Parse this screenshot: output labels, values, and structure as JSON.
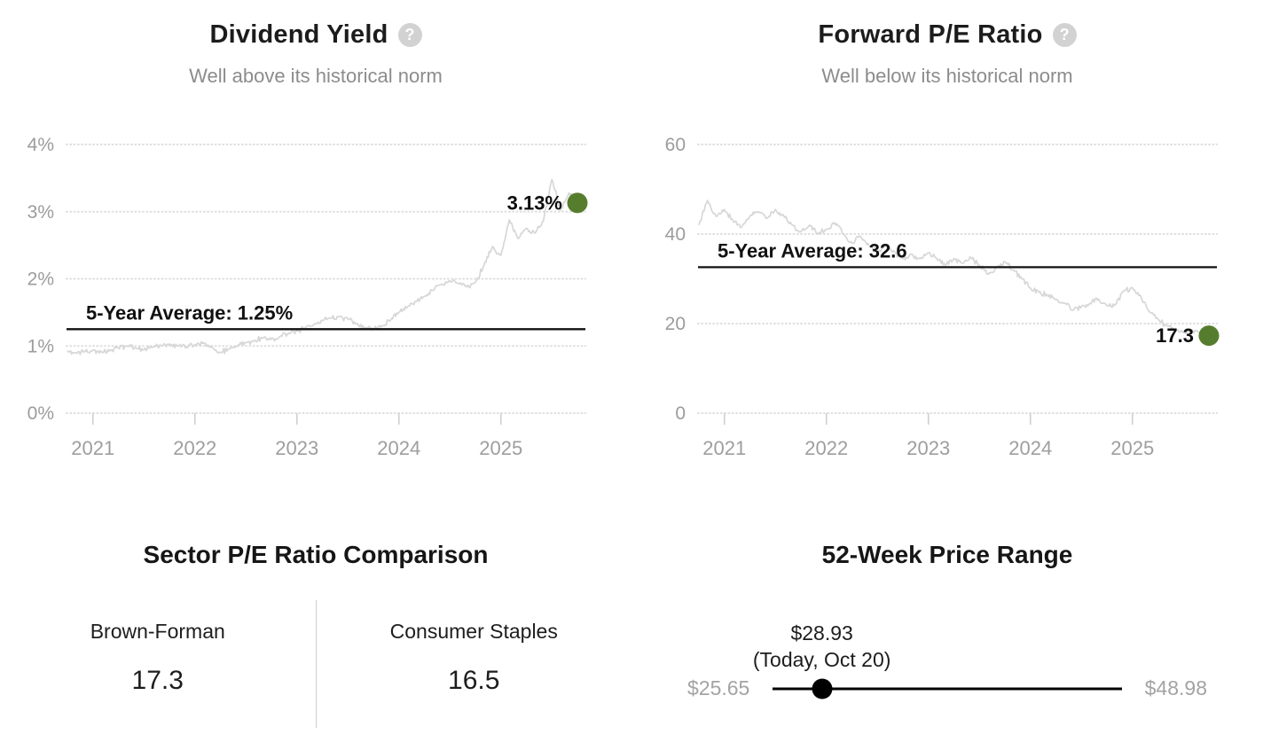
{
  "colors": {
    "accent_green": "#567d2d",
    "series_line": "#d7d7d7",
    "average_line": "#111111",
    "gridline": "#dedede",
    "axis_text": "#9c9c9c",
    "title_text": "#1c1c1c",
    "subtitle_text": "#8c8c8c",
    "range_label_gray": "#a3a3a3",
    "help_icon_bg": "#d2d2d2"
  },
  "chart_data": [
    {
      "type": "line",
      "title": "Dividend Yield",
      "subtitle": "Well above its historical norm",
      "help_icon": "question-mark-icon",
      "x_ticks": [
        "2021",
        "2022",
        "2023",
        "2024",
        "2025"
      ],
      "y_tick_labels": [
        "4%",
        "3%",
        "2%",
        "1%",
        "0%"
      ],
      "y_tick_values": [
        4,
        3,
        2,
        1,
        0
      ],
      "ylim": [
        0,
        4
      ],
      "grid": "dotted-horizontal",
      "legend": "none",
      "average_line": {
        "label": "5-Year Average: 1.25%",
        "value": 1.25
      },
      "end_point": {
        "label": "3.13%",
        "value": 3.13
      },
      "series": [
        {
          "name": "Dividend Yield (monthly, Oct 2020 - Oct 2025)",
          "values": [
            0.93,
            0.9,
            0.92,
            0.94,
            0.91,
            0.94,
            0.97,
            1.0,
            0.97,
            0.95,
            0.98,
            1.01,
            1.03,
            1.0,
            0.98,
            1.02,
            1.05,
            0.98,
            0.9,
            0.96,
            1.0,
            1.05,
            1.08,
            1.12,
            1.1,
            1.14,
            1.18,
            1.22,
            1.27,
            1.32,
            1.38,
            1.42,
            1.44,
            1.4,
            1.33,
            1.27,
            1.25,
            1.3,
            1.38,
            1.5,
            1.58,
            1.66,
            1.74,
            1.83,
            1.92,
            1.97,
            1.93,
            1.88,
            1.95,
            2.2,
            2.48,
            2.35,
            2.88,
            2.6,
            2.75,
            2.68,
            2.86,
            3.48,
            3.02,
            3.28,
            3.13
          ]
        }
      ],
      "line_color": "#d7d7d7",
      "dot_color": "#567d2d"
    },
    {
      "type": "line",
      "title": "Forward P/E Ratio",
      "subtitle": "Well below its historical norm",
      "help_icon": "question-mark-icon",
      "x_ticks": [
        "2021",
        "2022",
        "2023",
        "2024",
        "2025"
      ],
      "y_tick_labels": [
        "60",
        "40",
        "20",
        "0"
      ],
      "y_tick_values": [
        60,
        40,
        20,
        0
      ],
      "ylim": [
        0,
        60
      ],
      "grid": "dotted-horizontal",
      "legend": "none",
      "average_line": {
        "label": "5-Year Average: 32.6",
        "value": 32.6
      },
      "end_point": {
        "label": "17.3",
        "value": 17.3
      },
      "series": [
        {
          "name": "Forward P/E Ratio (monthly, Oct 2020 - Oct 2025)",
          "values": [
            42.0,
            47.5,
            44.0,
            45.5,
            43.0,
            41.5,
            44.0,
            45.0,
            43.5,
            45.5,
            44.0,
            42.0,
            40.5,
            42.0,
            40.0,
            41.0,
            42.5,
            40.0,
            38.0,
            39.5,
            37.5,
            36.0,
            37.5,
            36.0,
            34.5,
            35.5,
            34.5,
            35.8,
            34.5,
            33.0,
            34.5,
            33.5,
            34.8,
            33.0,
            31.0,
            32.5,
            33.8,
            32.0,
            30.0,
            27.9,
            27.0,
            26.3,
            25.5,
            24.5,
            23.0,
            23.8,
            24.5,
            25.5,
            24.0,
            24.3,
            27.3,
            28.0,
            26.0,
            22.6,
            21.0,
            19.5,
            18.6,
            18.0,
            18.5,
            17.8,
            17.3
          ]
        }
      ],
      "line_color": "#d7d7d7",
      "dot_color": "#567d2d"
    }
  ],
  "sector_comparison": {
    "title": "Sector P/E Ratio Comparison",
    "entries": [
      {
        "label": "Brown-Forman",
        "value": "17.3"
      },
      {
        "label": "Consumer Staples",
        "value": "16.5"
      }
    ]
  },
  "price_range": {
    "title": "52-Week Price Range",
    "current_label": "$28.93",
    "current_sublabel": "(Today, Oct 20)",
    "low_label": "$25.65",
    "high_label": "$48.98",
    "low_value": 25.65,
    "high_value": 48.98,
    "current_value": 28.93
  }
}
